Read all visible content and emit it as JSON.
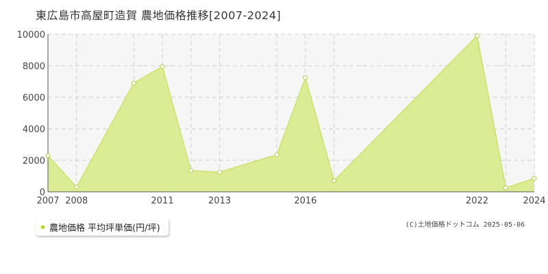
{
  "chart_data": {
    "type": "area",
    "title": "東広島市高屋町造賀 農地価格推移[2007-2024]",
    "xlabel": "",
    "ylabel": "",
    "x": [
      2007,
      2008,
      2010,
      2011,
      2012,
      2013,
      2015,
      2016,
      2017,
      2022,
      2023,
      2024
    ],
    "x_tick_labels": [
      "2007",
      "2008",
      "2011",
      "2013",
      "2016",
      "2022",
      "2024"
    ],
    "ylim": [
      0,
      10000
    ],
    "y_ticks": [
      0,
      2000,
      4000,
      6000,
      8000,
      10000
    ],
    "grid": true,
    "legend_position": "bottom-left",
    "series": [
      {
        "name": "農地価格 平均坪単価(円/坪)",
        "values": [
          2300,
          300,
          6900,
          7950,
          1350,
          1250,
          2350,
          7250,
          700,
          9900,
          250,
          850
        ]
      }
    ]
  },
  "credit": "(C)土地価格ドットコム 2025-05-06",
  "colors": {
    "line": "#c8e26a",
    "fill": "#dcec94",
    "marker_stroke": "#b7d55a",
    "marker_fill": "#ffffff",
    "grid": "#cfcfcf",
    "plot_bg": "#f6f6f6",
    "legend_swatch": "#b5d93e"
  }
}
